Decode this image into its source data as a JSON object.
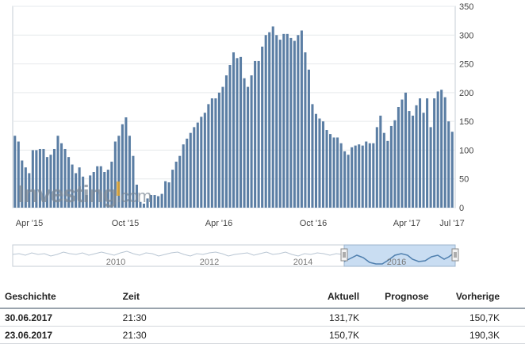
{
  "chart_data": {
    "type": "bar",
    "y_axis": {
      "ticks": [
        "0",
        "50",
        "100",
        "150",
        "200",
        "250",
        "300",
        "350"
      ],
      "range": [
        0,
        350
      ],
      "position": "right"
    },
    "x_tick_labels": [
      "Apr '15",
      "Oct '15",
      "Apr '16",
      "Oct '16",
      "Apr '17",
      "Jul '17"
    ],
    "values": [
      125,
      115,
      82,
      70,
      60,
      100,
      100,
      102,
      102,
      88,
      92,
      102,
      125,
      112,
      102,
      88,
      75,
      60,
      70,
      54,
      22,
      56,
      62,
      72,
      72,
      62,
      66,
      80,
      115,
      125,
      145,
      157,
      125,
      90,
      40,
      10,
      7,
      16,
      22,
      22,
      20,
      24,
      46,
      44,
      66,
      80,
      90,
      110,
      120,
      130,
      140,
      148,
      158,
      165,
      180,
      190,
      190,
      200,
      210,
      230,
      248,
      270,
      260,
      262,
      225,
      210,
      230,
      255,
      255,
      280,
      300,
      305,
      315,
      300,
      292,
      302,
      302,
      295,
      290,
      300,
      308,
      270,
      240,
      180,
      163,
      155,
      150,
      135,
      128,
      122,
      122,
      112,
      98,
      92,
      105,
      108,
      110,
      108,
      115,
      112,
      112,
      140,
      160,
      130,
      116,
      142,
      152,
      175,
      188,
      200,
      168,
      160,
      178,
      190,
      165,
      190,
      140,
      190,
      202,
      205,
      192,
      150,
      132
    ],
    "bar_color": "#5b7ea4",
    "grid": true
  },
  "watermark": {
    "brand_main": "Investing",
    "brand_suffix": ".com"
  },
  "navigator": {
    "year_labels": [
      "2010",
      "2012",
      "2014",
      "2016"
    ]
  },
  "table": {
    "headers": {
      "history": "Geschichte",
      "time": "Zeit",
      "actual": "Aktuell",
      "forecast": "Prognose",
      "previous": "Vorherige"
    },
    "rows": [
      {
        "date": "30.06.2017",
        "time": "21:30",
        "actual": "131,7K",
        "forecast": "",
        "previous": "150,7K"
      },
      {
        "date": "23.06.2017",
        "time": "21:30",
        "actual": "150,7K",
        "forecast": "",
        "previous": "190,3K"
      }
    ]
  }
}
